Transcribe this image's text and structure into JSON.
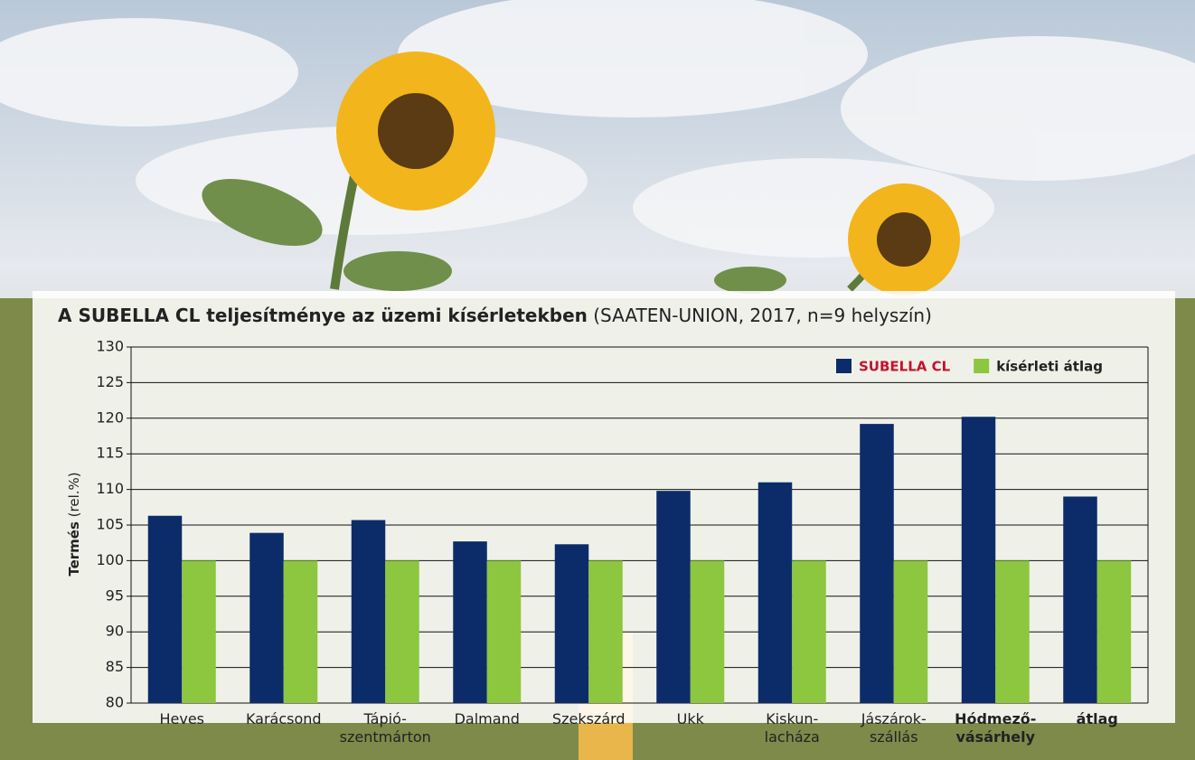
{
  "chart_data": {
    "type": "bar",
    "title": "A SUBELLA CL teljesítménye az üzemi kísérletekben",
    "subtitle": "(SAATEN-UNION, 2017, n=9 helyszín)",
    "ylabel": "Termés",
    "ylabel_unit": "(rel.%)",
    "categories": [
      "Heves",
      "Karácsond",
      "Tápió-\nszentmárton",
      "Dalmand",
      "Szekszárd",
      "Ukk",
      "Kiskun-\nlacháza",
      "Jászárok-\nszállás",
      "Hódmező-\nvásárhely",
      "átlag"
    ],
    "series": [
      {
        "name": "SUBELLA CL",
        "color": "#0c2c69",
        "values": [
          106.3,
          103.9,
          105.7,
          102.7,
          102.3,
          109.8,
          111.0,
          119.2,
          120.2,
          109.0
        ]
      },
      {
        "name": "kísérleti átlag",
        "color": "#8dc63f",
        "values": [
          100,
          100,
          100,
          100,
          100,
          100,
          100,
          100,
          100,
          100
        ]
      }
    ],
    "ylim": [
      80,
      130
    ],
    "yticks": [
      80,
      85,
      90,
      95,
      100,
      105,
      110,
      115,
      120,
      125,
      130
    ],
    "grid": true,
    "legend": "top-right"
  }
}
